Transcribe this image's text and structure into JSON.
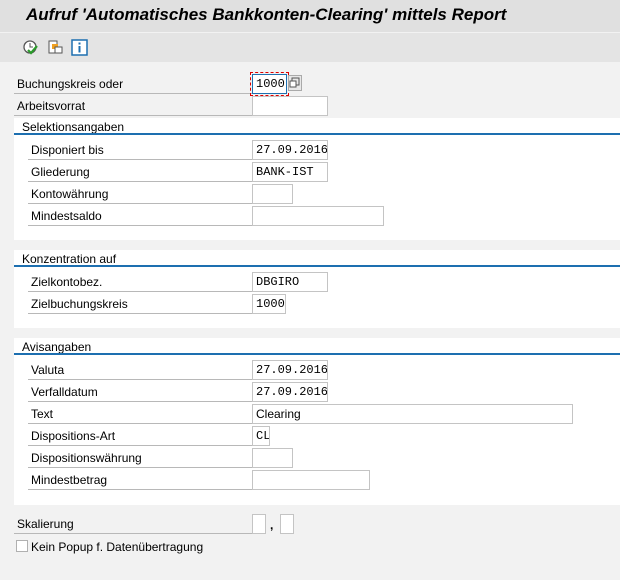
{
  "title": "Aufruf 'Automatisches Bankkonten-Clearing' mittels Report",
  "toolbar": {
    "icons": [
      "execute-icon",
      "variant-icon",
      "info-icon"
    ]
  },
  "top": {
    "buchungskreis_label": "Buchungskreis oder",
    "buchungskreis_value": "1000",
    "arbeitsvorrat_label": "Arbeitsvorrat",
    "arbeitsvorrat_value": ""
  },
  "sel": {
    "header": "Selektionsangaben",
    "rows": [
      {
        "label": "Disponiert bis",
        "value": "27.09.2016"
      },
      {
        "label": "Gliederung",
        "value": "BANK-IST"
      },
      {
        "label": "Kontowährung",
        "value": ""
      },
      {
        "label": "Mindestsaldo",
        "value": ""
      }
    ]
  },
  "konz": {
    "header": "Konzentration auf",
    "rows": [
      {
        "label": "Zielkontobez.",
        "value": "DBGIRO"
      },
      {
        "label": "Zielbuchungskreis",
        "value": "1000"
      }
    ]
  },
  "avis": {
    "header": "Avisangaben",
    "rows": [
      {
        "label": "Valuta",
        "value": "27.09.2016"
      },
      {
        "label": "Verfalldatum",
        "value": "27.09.2016"
      },
      {
        "label": "Text",
        "value": "Clearing"
      },
      {
        "label": "Dispositions-Art",
        "value": "CL"
      },
      {
        "label": "Dispositionswährung",
        "value": ""
      },
      {
        "label": "Mindestbetrag",
        "value": ""
      }
    ]
  },
  "bottom": {
    "skalierung_label": "Skalierung",
    "separator": ",",
    "checkbox_label": "Kein Popup f. Datenübertragung",
    "checkbox_checked": false
  }
}
